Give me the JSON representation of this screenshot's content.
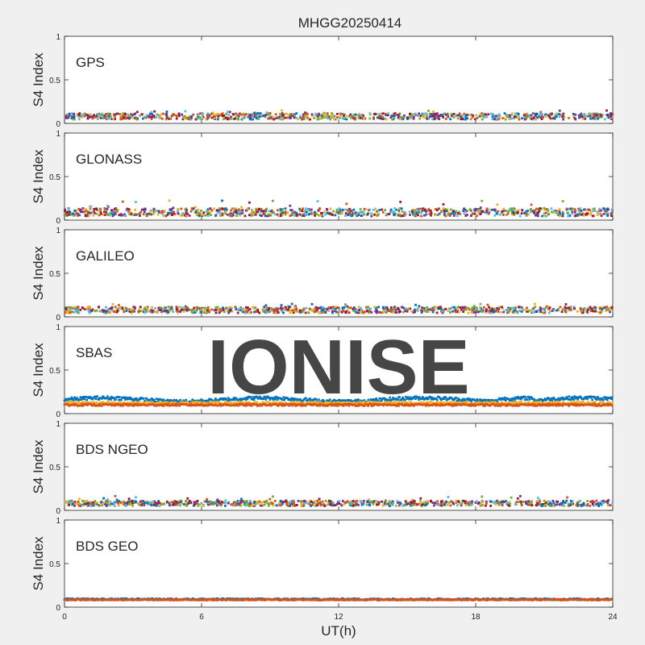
{
  "title": "MHGG20250414",
  "watermark": "IONISE",
  "colors": {
    "background": "#f0f0f0",
    "axes_bg": "#ffffff",
    "axis_line": "#262626",
    "watermark": "#e6e6e6",
    "series": [
      "#0072BD",
      "#D95319",
      "#EDB120",
      "#7E2F8E",
      "#77AC30",
      "#4DBEEE",
      "#A2142F"
    ]
  },
  "chart_data": [
    {
      "type": "scatter",
      "panel_label": "GPS",
      "ylabel": "S4 Index",
      "ylim": [
        0,
        1
      ],
      "yticks": [
        0,
        0.5,
        1
      ],
      "ytick_labels": [
        "0",
        "0.5",
        "1"
      ],
      "xlim": [
        0,
        24
      ],
      "baseline": 0.08,
      "spread": 0.035,
      "spikes": 0.13,
      "density": 900,
      "series_colors": [
        "#0072BD",
        "#D95319",
        "#EDB120",
        "#7E2F8E",
        "#77AC30",
        "#4DBEEE",
        "#A2142F"
      ]
    },
    {
      "type": "scatter",
      "panel_label": "GLONASS",
      "ylabel": "S4 Index",
      "ylim": [
        0,
        1
      ],
      "yticks": [
        0,
        0.5,
        1
      ],
      "ytick_labels": [
        "0",
        "0.5",
        "1"
      ],
      "xlim": [
        0,
        24
      ],
      "baseline": 0.09,
      "spread": 0.045,
      "spikes": 0.19,
      "density": 900,
      "series_colors": [
        "#0072BD",
        "#D95319",
        "#EDB120",
        "#7E2F8E",
        "#77AC30",
        "#4DBEEE",
        "#A2142F"
      ]
    },
    {
      "type": "scatter",
      "panel_label": "GALILEO",
      "ylabel": "S4 Index",
      "ylim": [
        0,
        1
      ],
      "yticks": [
        0,
        0.5,
        1
      ],
      "ytick_labels": [
        "0",
        "0.5",
        "1"
      ],
      "xlim": [
        0,
        24
      ],
      "baseline": 0.08,
      "spread": 0.035,
      "spikes": 0.13,
      "density": 900,
      "series_colors": [
        "#0072BD",
        "#D95319",
        "#EDB120",
        "#7E2F8E",
        "#77AC30",
        "#4DBEEE",
        "#A2142F"
      ]
    },
    {
      "type": "scatter",
      "panel_label": "SBAS",
      "ylabel": "S4 Index",
      "ylim": [
        0,
        1
      ],
      "yticks": [
        0,
        0.5,
        1
      ],
      "ytick_labels": [
        "0",
        "0.5",
        "1"
      ],
      "xlim": [
        0,
        24
      ],
      "bands": [
        {
          "color": "#0072BD",
          "level": 0.16,
          "jitter": 0.02
        },
        {
          "color": "#EDB120",
          "level": 0.12,
          "jitter": 0.015
        },
        {
          "color": "#D95319",
          "level": 0.1,
          "jitter": 0.012
        }
      ]
    },
    {
      "type": "scatter",
      "panel_label": "BDS NGEO",
      "ylabel": "S4 Index",
      "ylim": [
        0,
        1
      ],
      "yticks": [
        0,
        0.5,
        1
      ],
      "ytick_labels": [
        "0",
        "0.5",
        "1"
      ],
      "xlim": [
        0,
        24
      ],
      "baseline": 0.08,
      "spread": 0.03,
      "spikes": 0.14,
      "density": 900,
      "series_colors": [
        "#0072BD",
        "#D95319",
        "#EDB120",
        "#7E2F8E",
        "#77AC30",
        "#4DBEEE",
        "#A2142F"
      ]
    },
    {
      "type": "scatter",
      "panel_label": "BDS GEO",
      "ylabel": "S4 Index",
      "ylim": [
        0,
        1
      ],
      "yticks": [
        0,
        0.5,
        1
      ],
      "ytick_labels": [
        "0",
        "0.5",
        "1"
      ],
      "xlim": [
        0,
        24
      ],
      "bands": [
        {
          "color": "#0072BD",
          "level": 0.09,
          "jitter": 0.01
        },
        {
          "color": "#D95319",
          "level": 0.085,
          "jitter": 0.008
        }
      ]
    }
  ],
  "xaxis": {
    "label": "UT(h)",
    "ticks": [
      0,
      6,
      12,
      18,
      24
    ],
    "tick_labels": [
      "0",
      "6",
      "12",
      "18",
      "24"
    ]
  }
}
